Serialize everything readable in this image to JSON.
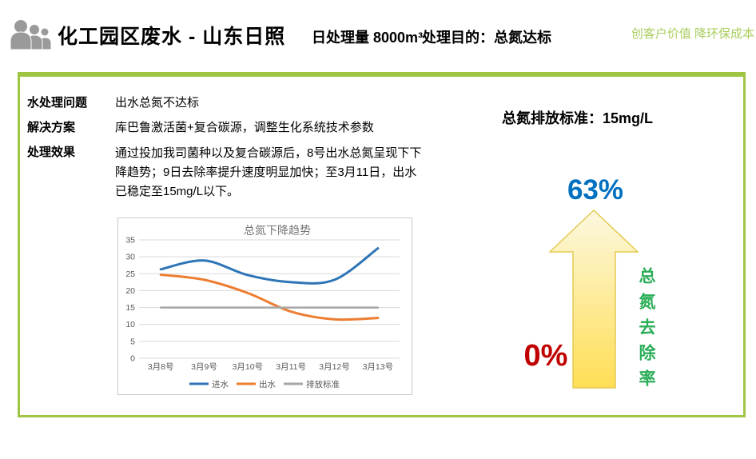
{
  "header": {
    "icon": "people-group-icon",
    "title": "化工园区废水 - 山东日照",
    "daily_volume": "日处理量 8000m³",
    "purpose": "处理目的：总氮达标",
    "slogan": "创客户价值 降环保成本",
    "slogan_color": "#a9ce5d"
  },
  "panel": {
    "border_color": "#9fc543",
    "rows": [
      {
        "label": "水处理问题",
        "value": "出水总氮不达标"
      },
      {
        "label": "解决方案",
        "value": "库巴鲁激活菌+复合碳源，调整生化系统技术参数"
      },
      {
        "label": "处理效果",
        "value": "通过投加我司菌种以及复合碳源后，8号出水总氮呈现下下降趋势；9日去除率提升速度明显加快；至3月11日，出水已稳定至15mg/L以下。"
      }
    ],
    "standard_note": "总氮排放标准：15mg/L"
  },
  "removal": {
    "top_value": "63%",
    "top_color": "#0070c0",
    "bottom_value": "0%",
    "bottom_color": "#c00000",
    "axis_label": "总氮去除率",
    "label_color": "#2bae58",
    "arrow_gradient_top": "#fcf8df",
    "arrow_gradient_bottom": "#ffde55",
    "arrow_stroke": "#e3ca52"
  },
  "chart_data": {
    "type": "line",
    "title": "总氮下降趋势",
    "title_color": "#757575",
    "categories": [
      "3月8号",
      "3月9号",
      "3月10号",
      "3月11号",
      "3月12号",
      "3月13号"
    ],
    "series": [
      {
        "name": "进水",
        "color": "#2e75b6",
        "smooth": true,
        "width": 3,
        "values": [
          26.3,
          28.9,
          24.6,
          22.5,
          23.2,
          32.5
        ]
      },
      {
        "name": "出水",
        "color": "#ed7d31",
        "smooth": true,
        "width": 3,
        "values": [
          24.7,
          23.2,
          19.3,
          13.8,
          11.5,
          11.9
        ]
      },
      {
        "name": "排放标准",
        "color": "#a6a6a6",
        "smooth": false,
        "width": 2.5,
        "values": [
          15,
          15,
          15,
          15,
          15,
          15
        ]
      }
    ],
    "ylim": [
      0,
      35
    ],
    "ytick_step": 5,
    "yticks": [
      0,
      5,
      10,
      15,
      20,
      25,
      30,
      35
    ],
    "grid": true,
    "grid_color": "#d9d9d9",
    "axis_text_color": "#595959",
    "legend_position": "bottom"
  }
}
